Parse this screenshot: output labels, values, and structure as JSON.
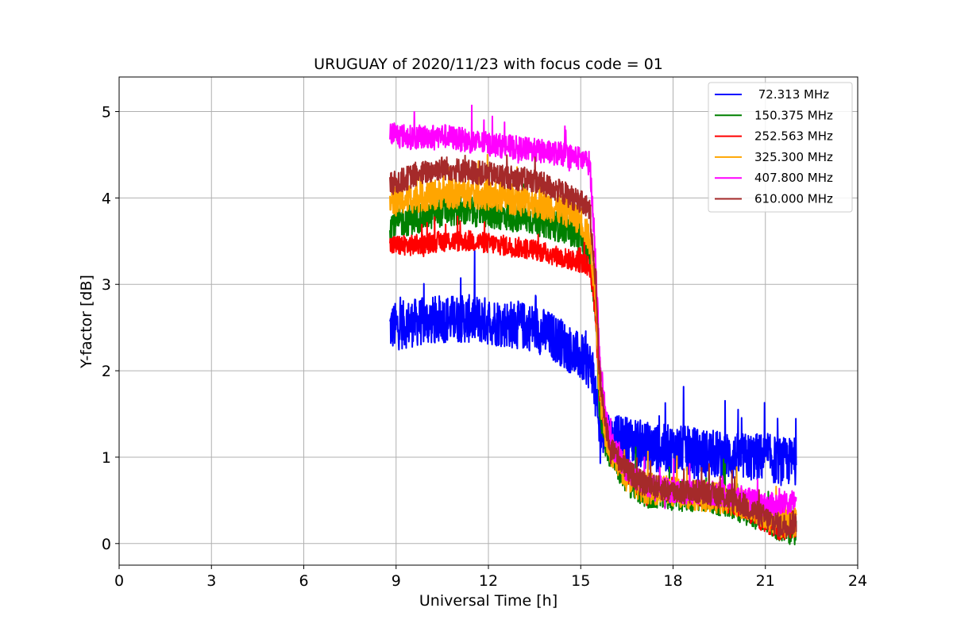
{
  "chart_data": {
    "type": "line",
    "title": "URUGUAY of 2020/11/23 with focus code = 01",
    "xlabel": "Universal Time [h]",
    "ylabel": "Y-factor [dB]",
    "xlim": [
      0,
      24
    ],
    "ylim": [
      -0.25,
      5.4
    ],
    "xticks": [
      0,
      3,
      6,
      9,
      12,
      15,
      18,
      21,
      24
    ],
    "yticks": [
      0,
      1,
      2,
      3,
      4,
      5
    ],
    "grid": true,
    "legend_position": "top-right",
    "series": [
      {
        "name": " 72.313 MHz",
        "color": "#0000ff",
        "x": [
          8.8,
          9.5,
          10.5,
          11.5,
          12.5,
          13.5,
          14.3,
          14.8,
          15.2,
          15.4,
          15.5,
          15.6,
          15.8,
          16.0,
          16.5,
          17.0,
          17.5,
          18.0,
          19.0,
          20.0,
          21.0,
          21.5,
          22.0
        ],
        "y": [
          2.5,
          2.55,
          2.6,
          2.6,
          2.55,
          2.5,
          2.35,
          2.2,
          2.1,
          2.0,
          1.6,
          1.3,
          1.35,
          1.2,
          1.2,
          1.15,
          1.1,
          1.1,
          1.05,
          1.0,
          1.0,
          0.95,
          0.95
        ],
        "noise": 0.28
      },
      {
        "name": "150.375 MHz",
        "color": "#008000",
        "x": [
          8.8,
          9.5,
          10.5,
          11.5,
          12.5,
          13.5,
          14.5,
          15.0,
          15.3,
          15.5,
          15.6,
          15.8,
          16.0,
          16.5,
          17.0,
          18.0,
          19.0,
          20.0,
          21.0,
          21.5,
          22.0
        ],
        "y": [
          3.7,
          3.75,
          3.85,
          3.85,
          3.8,
          3.75,
          3.65,
          3.55,
          3.3,
          2.6,
          1.6,
          1.2,
          1.0,
          0.75,
          0.6,
          0.55,
          0.55,
          0.45,
          0.3,
          0.2,
          0.15
        ],
        "noise": 0.18
      },
      {
        "name": "252.563 MHz",
        "color": "#ff0000",
        "x": [
          8.8,
          9.5,
          10.5,
          11.5,
          12.5,
          13.5,
          14.5,
          15.0,
          15.3,
          15.5,
          15.6,
          15.8,
          16.0,
          16.5,
          17.0,
          18.0,
          19.0,
          20.0,
          21.0,
          21.5,
          22.0
        ],
        "y": [
          3.45,
          3.45,
          3.5,
          3.5,
          3.45,
          3.4,
          3.3,
          3.25,
          3.2,
          2.6,
          1.8,
          1.3,
          1.05,
          0.8,
          0.65,
          0.6,
          0.55,
          0.45,
          0.25,
          0.15,
          0.2
        ],
        "noise": 0.12
      },
      {
        "name": "325.300 MHz",
        "color": "#ffa500",
        "x": [
          8.8,
          9.5,
          10.5,
          11.5,
          12.5,
          13.5,
          14.5,
          15.0,
          15.3,
          15.5,
          15.6,
          15.8,
          16.0,
          16.5,
          17.0,
          18.0,
          19.0,
          20.0,
          21.0,
          21.5,
          22.0
        ],
        "y": [
          3.95,
          4.0,
          4.05,
          4.05,
          4.0,
          3.95,
          3.85,
          3.75,
          3.5,
          2.8,
          1.8,
          1.3,
          1.05,
          0.8,
          0.65,
          0.6,
          0.55,
          0.5,
          0.35,
          0.25,
          0.25
        ],
        "noise": 0.18
      },
      {
        "name": "407.800 MHz",
        "color": "#ff00ff",
        "x": [
          8.8,
          9.5,
          10.5,
          11.5,
          12.5,
          13.5,
          14.5,
          15.0,
          15.3,
          15.5,
          15.6,
          15.8,
          16.0,
          16.5,
          17.0,
          18.0,
          19.0,
          20.0,
          21.0,
          21.5,
          22.0
        ],
        "y": [
          4.75,
          4.7,
          4.72,
          4.65,
          4.6,
          4.55,
          4.5,
          4.45,
          4.4,
          3.2,
          2.2,
          1.5,
          1.15,
          0.85,
          0.7,
          0.6,
          0.6,
          0.55,
          0.45,
          0.45,
          0.5
        ],
        "noise": 0.14
      },
      {
        "name": "610.000 MHz",
        "color": "#a52a2a",
        "x": [
          8.8,
          9.5,
          10.5,
          11.5,
          12.5,
          13.5,
          14.5,
          15.0,
          15.3,
          15.5,
          15.6,
          15.8,
          16.0,
          16.5,
          17.0,
          18.0,
          19.0,
          20.0,
          21.0,
          21.5,
          22.0
        ],
        "y": [
          4.15,
          4.25,
          4.35,
          4.3,
          4.25,
          4.2,
          4.05,
          3.95,
          3.85,
          3.0,
          2.0,
          1.4,
          1.1,
          0.85,
          0.7,
          0.6,
          0.6,
          0.5,
          0.3,
          0.2,
          0.25
        ],
        "noise": 0.14
      }
    ]
  }
}
